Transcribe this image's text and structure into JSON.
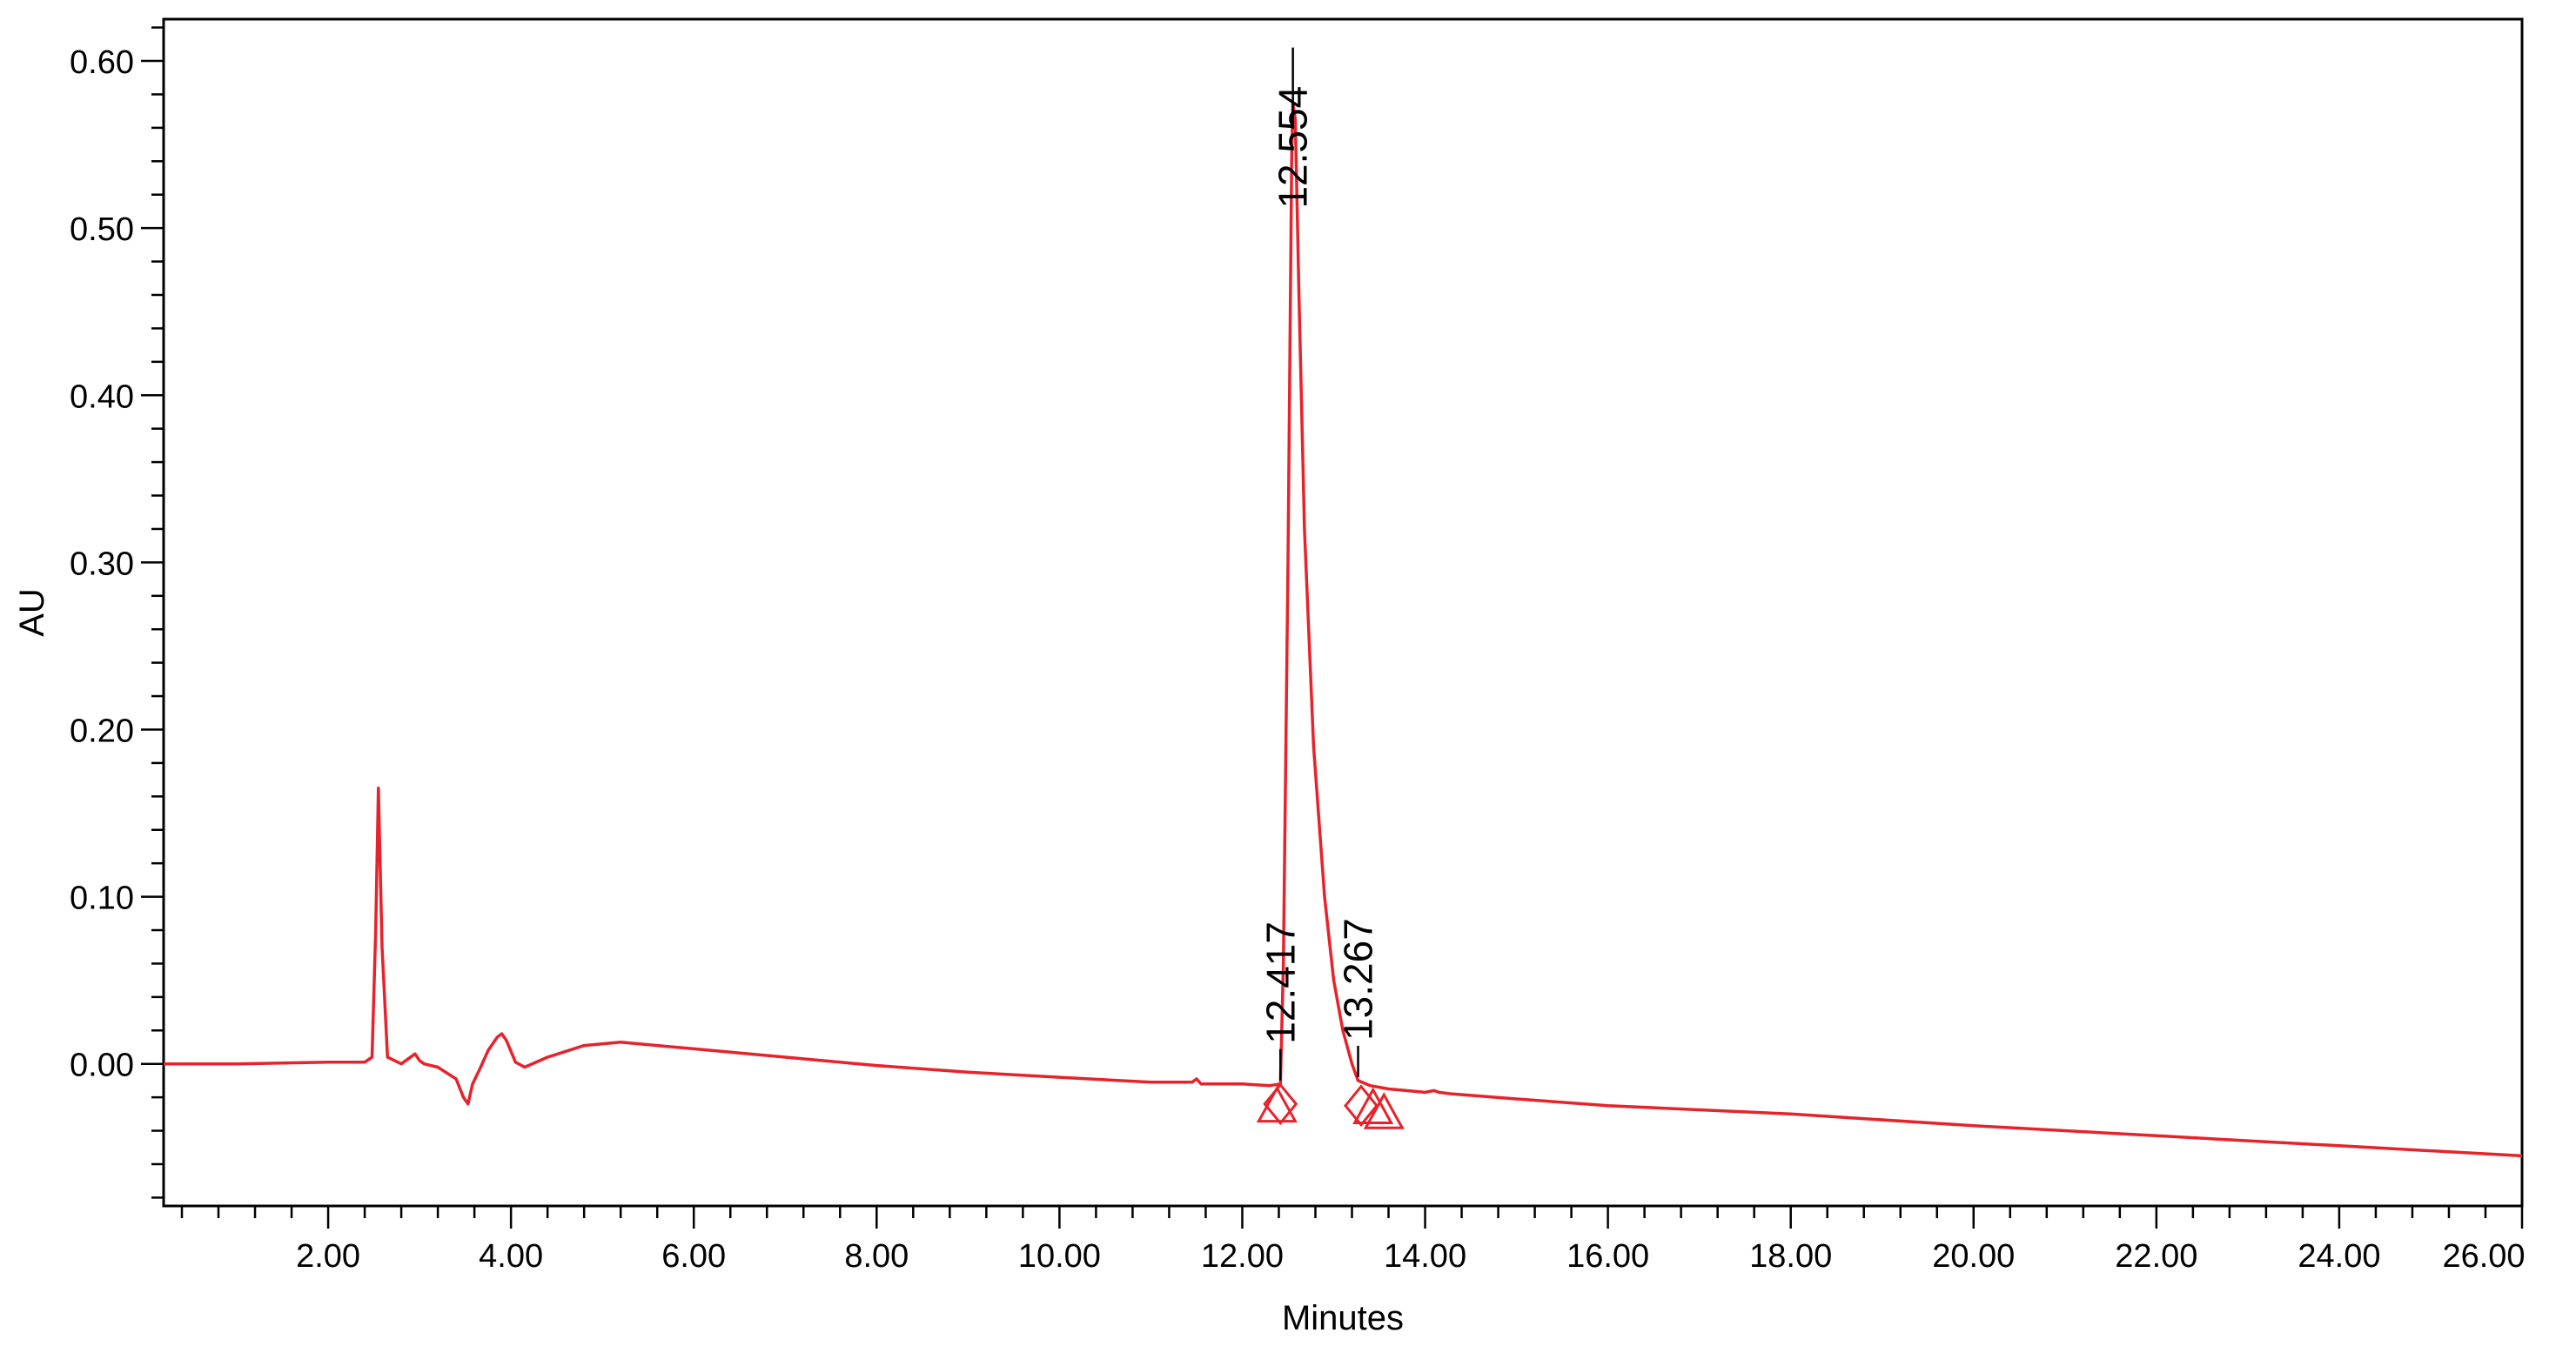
{
  "chart_data": {
    "type": "line",
    "title": "",
    "xlabel": "Minutes",
    "ylabel": "AU",
    "xlim": [
      0.2,
      26.0
    ],
    "ylim": [
      -0.085,
      0.625
    ],
    "x_ticks": [
      2.0,
      4.0,
      6.0,
      8.0,
      10.0,
      12.0,
      14.0,
      16.0,
      18.0,
      20.0,
      22.0,
      24.0,
      26.0
    ],
    "x_tick_labels": [
      "2.00",
      "4.00",
      "6.00",
      "8.00",
      "10.00",
      "12.00",
      "14.00",
      "16.00",
      "18.00",
      "20.00",
      "22.00",
      "24.00",
      "26.00"
    ],
    "y_ticks": [
      0.0,
      0.1,
      0.2,
      0.3,
      0.4,
      0.5,
      0.6
    ],
    "y_tick_labels": [
      "0.00",
      "0.10",
      "0.20",
      "0.30",
      "0.40",
      "0.50",
      "0.60"
    ],
    "grid": false,
    "legend": "none",
    "line_color": "#e8222a",
    "peak_label_color": "#000000",
    "series": [
      {
        "x": [
          0.2,
          1.0,
          2.0,
          2.4,
          2.48,
          2.52,
          2.55,
          2.59,
          2.65,
          2.8,
          2.95,
          3.0,
          3.05,
          3.2,
          3.4,
          3.48,
          3.53,
          3.58,
          3.66,
          3.75,
          3.85,
          3.9,
          3.95,
          4.05,
          4.15,
          4.4,
          4.8,
          5.2,
          5.6,
          6.0,
          7.0,
          8.0,
          9.0,
          10.0,
          11.0,
          11.45,
          11.5,
          11.55,
          12.0,
          12.3,
          12.417,
          12.45,
          12.5,
          12.54,
          12.554,
          12.58,
          12.62,
          12.68,
          12.78,
          12.9,
          13.0,
          13.1,
          13.2,
          13.267,
          13.4,
          13.6,
          14.0,
          14.1,
          14.15,
          14.3,
          15.0,
          16.0,
          18.0,
          20.0,
          22.0,
          24.0,
          26.0
        ],
        "y": [
          0.0,
          0.0,
          0.001,
          0.001,
          0.004,
          0.08,
          0.165,
          0.07,
          0.004,
          0.0,
          0.006,
          0.002,
          0.0,
          -0.002,
          -0.009,
          -0.02,
          -0.024,
          -0.012,
          -0.003,
          0.008,
          0.016,
          0.018,
          0.014,
          0.001,
          -0.002,
          0.004,
          0.011,
          0.013,
          0.011,
          0.009,
          0.004,
          -0.001,
          -0.005,
          -0.008,
          -0.011,
          -0.011,
          -0.009,
          -0.012,
          -0.012,
          -0.013,
          -0.012,
          0.06,
          0.3,
          0.54,
          0.575,
          0.565,
          0.46,
          0.32,
          0.19,
          0.1,
          0.05,
          0.02,
          0.0,
          -0.01,
          -0.013,
          -0.015,
          -0.017,
          -0.016,
          -0.017,
          -0.018,
          -0.021,
          -0.025,
          -0.03,
          -0.037,
          -0.043,
          -0.049,
          -0.055
        ]
      }
    ],
    "peaks": [
      {
        "label": "12.417",
        "x": 12.417,
        "y": -0.012
      },
      {
        "label": "12.554",
        "x": 12.554,
        "y": 0.575
      },
      {
        "label": "13.267",
        "x": 13.267,
        "y": -0.01
      }
    ],
    "baseline_markers": [
      {
        "shape": "triangle",
        "x": 12.38,
        "y": -0.027
      },
      {
        "shape": "diamond",
        "x": 12.417,
        "y": -0.024
      },
      {
        "shape": "diamond",
        "x": 13.3,
        "y": -0.025
      },
      {
        "shape": "triangle",
        "x": 13.43,
        "y": -0.028
      },
      {
        "shape": "triangle",
        "x": 13.55,
        "y": -0.031
      }
    ]
  }
}
